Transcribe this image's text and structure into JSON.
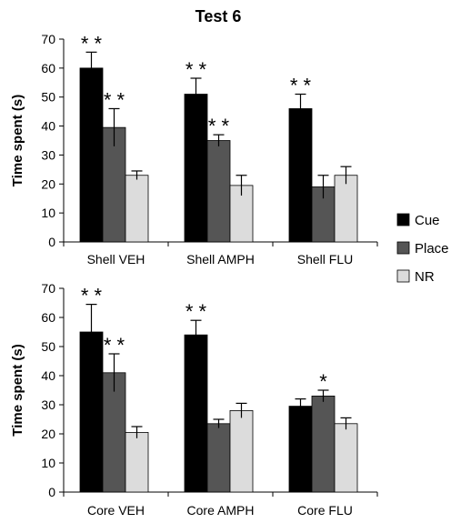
{
  "figure": {
    "title": "Test 6",
    "legend": {
      "placement": "right",
      "items": [
        {
          "label": "Cue",
          "color": "#000000"
        },
        {
          "label": "Place",
          "color": "#555555"
        },
        {
          "label": "NR",
          "color": "#dcdcdc"
        }
      ]
    }
  },
  "chart_data": [
    {
      "type": "bar",
      "title": "Test 6",
      "categories": [
        "Shell VEH",
        "Shell AMPH",
        "Shell FLU"
      ],
      "series": [
        {
          "name": "Cue",
          "color": "#000000",
          "values": [
            60,
            51,
            46
          ],
          "errors": [
            5.5,
            5.5,
            5
          ],
          "significance": [
            "**",
            "**",
            "**"
          ]
        },
        {
          "name": "Place",
          "color": "#555555",
          "values": [
            39.5,
            35,
            19
          ],
          "errors": [
            6.5,
            2,
            4
          ],
          "significance": [
            "**",
            "**",
            ""
          ]
        },
        {
          "name": "NR",
          "color": "#dcdcdc",
          "values": [
            23,
            19.5,
            23
          ],
          "errors": [
            1.5,
            3.5,
            3
          ],
          "significance": [
            "",
            "",
            ""
          ]
        }
      ],
      "xlabel": "",
      "ylabel": "Time spent (s)",
      "ylim": [
        0,
        70
      ],
      "yticks": [
        0,
        10,
        20,
        30,
        40,
        50,
        60,
        70
      ],
      "grid": false
    },
    {
      "type": "bar",
      "categories": [
        "Core VEH",
        "Core AMPH",
        "Core FLU"
      ],
      "series": [
        {
          "name": "Cue",
          "color": "#000000",
          "values": [
            55,
            54,
            29.5
          ],
          "errors": [
            9.5,
            5,
            2.5
          ],
          "significance": [
            "**",
            "**",
            ""
          ]
        },
        {
          "name": "Place",
          "color": "#555555",
          "values": [
            41,
            23.5,
            33
          ],
          "errors": [
            6.5,
            1.5,
            2
          ],
          "significance": [
            "**",
            "",
            "*"
          ]
        },
        {
          "name": "NR",
          "color": "#dcdcdc",
          "values": [
            20.5,
            28,
            23.5
          ],
          "errors": [
            2,
            2.5,
            2
          ],
          "significance": [
            "",
            "",
            ""
          ]
        }
      ],
      "xlabel": "",
      "ylabel": "Time spent (s)",
      "ylim": [
        0,
        70
      ],
      "yticks": [
        0,
        10,
        20,
        30,
        40,
        50,
        60,
        70
      ],
      "grid": false
    }
  ]
}
